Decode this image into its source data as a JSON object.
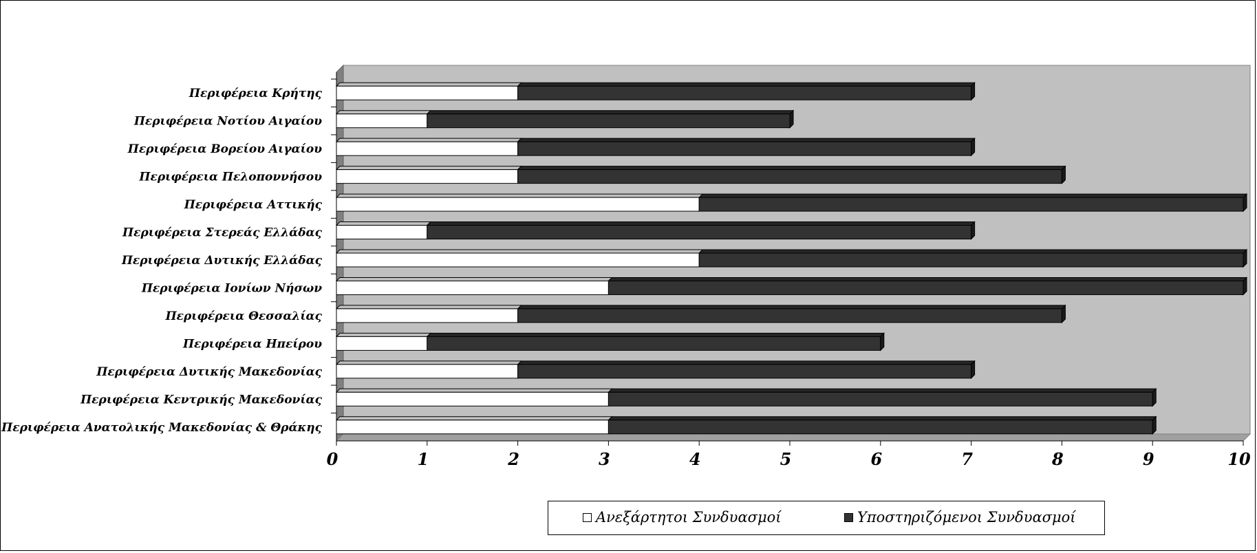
{
  "chart_data": {
    "type": "bar",
    "orientation": "horizontal",
    "stacked": true,
    "style": "3d",
    "categories": [
      "Περιφέρεια Ανατολικής Μακεδονίας & Θράκης",
      "Περιφέρεια Κεντρικής Μακεδονίας",
      "Περιφέρεια Δυτικής Μακεδονίας",
      "Περιφέρεια Ηπείρου",
      "Περιφέρεια Θεσσαλίας",
      "Περιφέρεια Ιονίων Νήσων",
      "Περιφέρεια Δυτικής Ελλάδας",
      "Περιφέρεια Στερεάς Ελλάδας",
      "Περιφέρεια Αττικής",
      "Περιφέρεια Πελοποννήσου",
      "Περιφέρεια Βορείου Αιγαίου",
      "Περιφέρεια Νοτίου Αιγαίου",
      "Περιφέρεια Κρήτης"
    ],
    "series": [
      {
        "name": "Ανεξάρτητοι Συνδυασμοί",
        "color": "#ffffff",
        "values": [
          3,
          3,
          2,
          1,
          2,
          3,
          4,
          1,
          4,
          2,
          2,
          1,
          2
        ]
      },
      {
        "name": "Υποστηριζόμενοι Συνδυασμοί",
        "color": "#333333",
        "values": [
          6,
          6,
          5,
          5,
          6,
          7,
          6,
          6,
          6,
          6,
          5,
          4,
          5
        ]
      }
    ],
    "xlim": [
      0,
      10
    ],
    "xticks": [
      "0",
      "1",
      "2",
      "3",
      "4",
      "5",
      "6",
      "7",
      "8",
      "9",
      "10"
    ],
    "title": "",
    "xlabel": "",
    "ylabel": "",
    "grid": false,
    "plot_background": "#c0c0c0",
    "legend_position": "bottom"
  }
}
